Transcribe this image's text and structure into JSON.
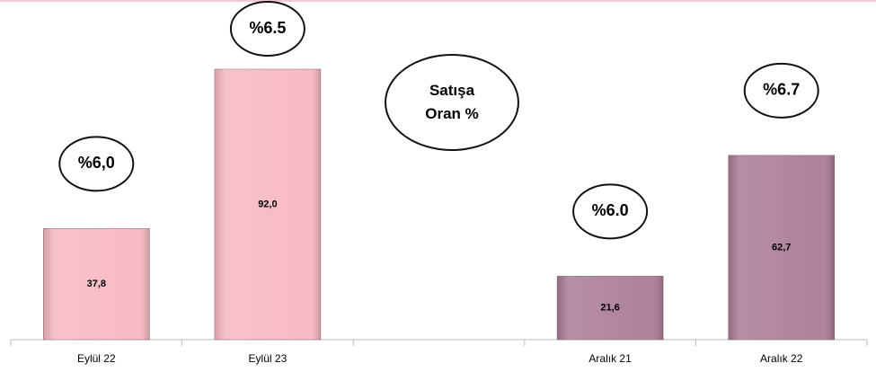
{
  "chart_data": {
    "type": "bar",
    "categories": [
      "Eylül 22",
      "Eylül 23",
      null,
      "Aralık 21",
      "Aralık 22"
    ],
    "values": [
      37.8,
      92.0,
      null,
      21.6,
      62.7
    ],
    "value_labels": [
      "37,8",
      "92,0",
      null,
      "21,6",
      "62,7"
    ],
    "colors": [
      "#f7b7c0",
      "#f7b7c0",
      null,
      "#a97b95",
      "#a97b95"
    ],
    "ratio_labels": [
      "%6,0",
      "%6.5",
      null,
      "%6.0",
      "%6.7"
    ],
    "annotation": "Satışa Oran %"
  }
}
